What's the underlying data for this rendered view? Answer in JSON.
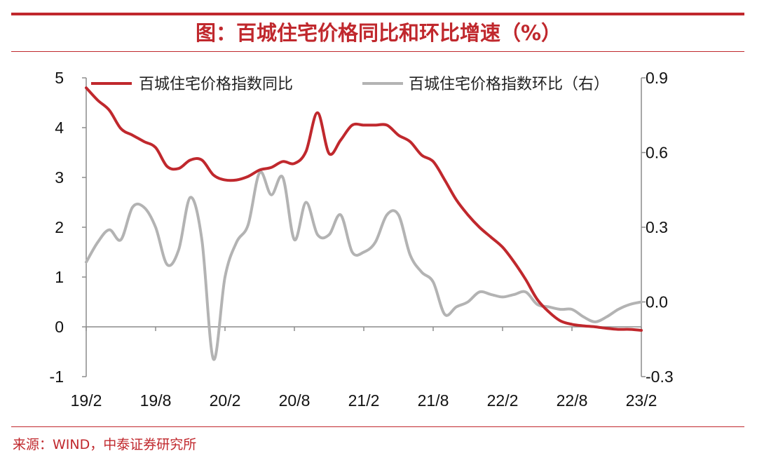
{
  "title": "图：百城住宅价格同比和环比增速（%）",
  "source": "来源：WIND，中泰证券研究所",
  "colors": {
    "accent": "#c0282d",
    "series_yoy": "#c0282d",
    "series_mom": "#b3b3b3",
    "axis": "#8c8c8c"
  },
  "chart_data": {
    "type": "line",
    "x_ticks": [
      "19/2",
      "19/8",
      "20/2",
      "20/8",
      "21/2",
      "21/8",
      "22/2",
      "22/8",
      "23/2"
    ],
    "left_axis": {
      "ylim": [
        -1,
        5
      ],
      "ticks": [
        "-1",
        "0",
        "1",
        "2",
        "3",
        "4",
        "5"
      ]
    },
    "right_axis": {
      "ylim": [
        -0.3,
        0.9
      ],
      "ticks": [
        "-0.3",
        "0.0",
        "0.3",
        "0.6",
        "0.9"
      ]
    },
    "legend_position": "top",
    "series": [
      {
        "name": "百城住宅价格指数同比",
        "axis": "left",
        "x": [
          0,
          1,
          2,
          3,
          4,
          5,
          6,
          7,
          8,
          9,
          10,
          11,
          12,
          13,
          14,
          15,
          16,
          17,
          18,
          19,
          20,
          21,
          22,
          23,
          24,
          25,
          26,
          27,
          28,
          29,
          30,
          31,
          32,
          33,
          34,
          35,
          36,
          37,
          38,
          39,
          40,
          41,
          42,
          43,
          44,
          45,
          46,
          47,
          48
        ],
        "values": [
          4.8,
          4.55,
          4.35,
          3.98,
          3.85,
          3.72,
          3.6,
          3.22,
          3.18,
          3.35,
          3.35,
          3.05,
          2.95,
          2.95,
          3.02,
          3.15,
          3.2,
          3.32,
          3.28,
          3.52,
          4.3,
          3.48,
          3.75,
          4.05,
          4.05,
          4.05,
          4.05,
          3.85,
          3.72,
          3.45,
          3.32,
          2.95,
          2.55,
          2.25,
          2.0,
          1.8,
          1.6,
          1.3,
          0.95,
          0.55,
          0.3,
          0.12,
          0.05,
          0.02,
          0.0,
          -0.03,
          -0.05,
          -0.05,
          -0.07
        ]
      },
      {
        "name": "百城住宅价格指数环比（右）",
        "axis": "right",
        "x": [
          0,
          1,
          2,
          3,
          4,
          5,
          6,
          7,
          8,
          9,
          10,
          11,
          12,
          13,
          14,
          15,
          16,
          17,
          18,
          19,
          20,
          21,
          22,
          23,
          24,
          25,
          26,
          27,
          28,
          29,
          30,
          31,
          32,
          33,
          34,
          35,
          36,
          37,
          38,
          39,
          40,
          41,
          42,
          43,
          44,
          45,
          46,
          47,
          48
        ],
        "values": [
          0.16,
          0.24,
          0.29,
          0.25,
          0.38,
          0.38,
          0.3,
          0.15,
          0.21,
          0.42,
          0.25,
          -0.23,
          0.1,
          0.24,
          0.31,
          0.52,
          0.43,
          0.5,
          0.25,
          0.4,
          0.27,
          0.27,
          0.35,
          0.2,
          0.2,
          0.24,
          0.35,
          0.35,
          0.19,
          0.12,
          0.08,
          -0.05,
          -0.02,
          0.0,
          0.04,
          0.03,
          0.02,
          0.03,
          0.04,
          -0.01,
          -0.02,
          -0.03,
          -0.03,
          -0.06,
          -0.08,
          -0.06,
          -0.03,
          -0.01,
          0.0
        ]
      }
    ]
  }
}
